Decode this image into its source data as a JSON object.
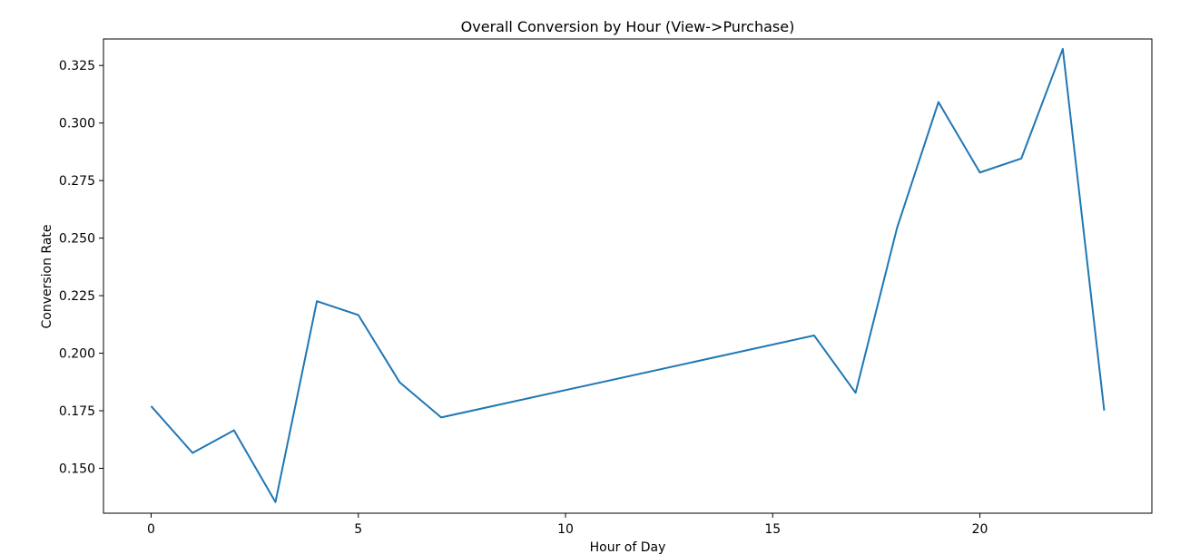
{
  "chart_data": {
    "type": "line",
    "title": "Overall Conversion by Hour (View->Purchase)",
    "xlabel": "Hour of Day",
    "ylabel": "Conversion Rate",
    "xlim": [
      -1.15,
      24.15
    ],
    "ylim": [
      0.1305,
      0.3365
    ],
    "xticks": [
      0,
      5,
      10,
      15,
      20
    ],
    "yticks": [
      0.15,
      0.175,
      0.2,
      0.225,
      0.25,
      0.275,
      0.3,
      0.325
    ],
    "xtick_labels": [
      "0",
      "5",
      "10",
      "15",
      "20"
    ],
    "ytick_labels": [
      "0.150",
      "0.175",
      "0.200",
      "0.225",
      "0.250",
      "0.275",
      "0.300",
      "0.325"
    ],
    "grid": false,
    "series": [
      {
        "color": "#1f77b4",
        "x": [
          0,
          1,
          2,
          3,
          4,
          5,
          6,
          7,
          16,
          17,
          18,
          19,
          20,
          21,
          22,
          23
        ],
        "y": [
          0.177,
          0.1567,
          0.1665,
          0.1353,
          0.2226,
          0.2166,
          0.1873,
          0.1721,
          0.2077,
          0.1828,
          0.2544,
          0.3091,
          0.2785,
          0.2846,
          0.3322,
          0.1751
        ]
      }
    ]
  }
}
